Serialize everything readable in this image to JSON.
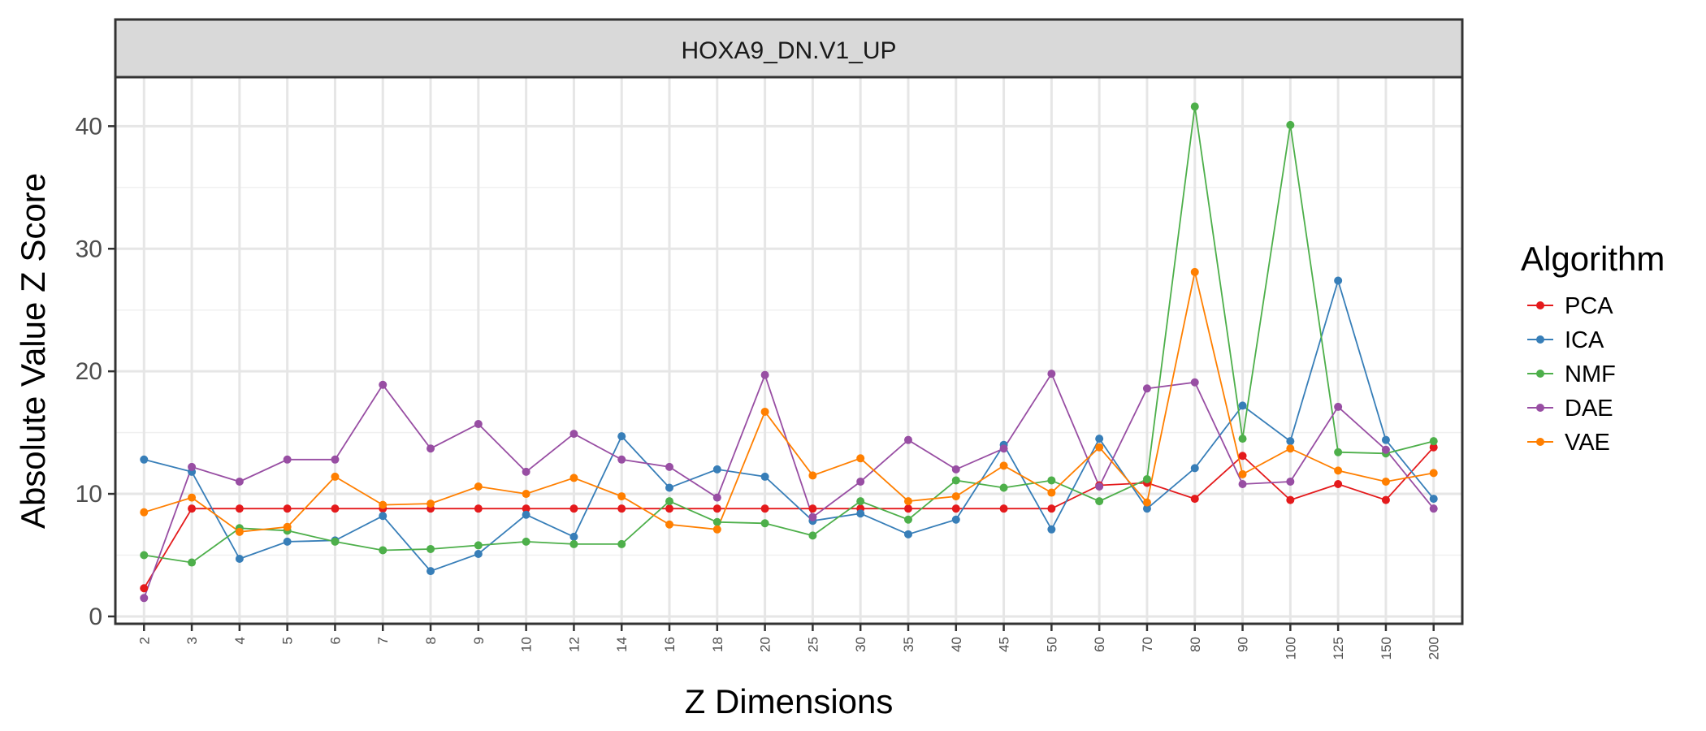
{
  "chart_data": {
    "type": "line",
    "panel_title": "HOXA9_DN.V1_UP",
    "xlabel": "Z Dimensions",
    "ylabel": "Absolute Value Z Score",
    "categories": [
      "2",
      "3",
      "4",
      "5",
      "6",
      "7",
      "8",
      "9",
      "10",
      "12",
      "14",
      "16",
      "18",
      "20",
      "25",
      "30",
      "35",
      "40",
      "45",
      "50",
      "60",
      "70",
      "80",
      "90",
      "100",
      "125",
      "150",
      "200"
    ],
    "yticks": [
      0,
      10,
      20,
      30,
      40
    ],
    "ylim": [
      -0.6,
      44
    ],
    "grid": true,
    "legend": {
      "title": "Algorithm",
      "position": "right"
    },
    "series": [
      {
        "name": "PCA",
        "color": "#E41A1C",
        "values": [
          2.3,
          8.8,
          8.8,
          8.8,
          8.8,
          8.8,
          8.8,
          8.8,
          8.8,
          8.8,
          8.8,
          8.8,
          8.8,
          8.8,
          8.8,
          8.8,
          8.8,
          8.8,
          8.8,
          8.8,
          10.7,
          10.9,
          9.6,
          13.1,
          9.5,
          10.8,
          9.5,
          13.8
        ]
      },
      {
        "name": "ICA",
        "color": "#377EB8",
        "values": [
          12.8,
          11.8,
          4.7,
          6.1,
          6.2,
          8.2,
          3.7,
          5.1,
          8.3,
          6.5,
          14.7,
          10.5,
          12.0,
          11.4,
          7.8,
          8.4,
          6.7,
          7.9,
          14.0,
          7.1,
          14.5,
          8.8,
          12.1,
          17.2,
          14.3,
          27.4,
          14.4,
          9.6
        ]
      },
      {
        "name": "NMF",
        "color": "#4DAF4A",
        "values": [
          5.0,
          4.4,
          7.2,
          7.0,
          6.1,
          5.4,
          5.5,
          5.8,
          6.1,
          5.9,
          5.9,
          9.4,
          7.7,
          7.6,
          6.6,
          9.4,
          7.9,
          11.1,
          10.5,
          11.1,
          9.4,
          11.2,
          41.6,
          14.5,
          40.1,
          13.4,
          13.3,
          14.3
        ]
      },
      {
        "name": "DAE",
        "color": "#984EA3",
        "values": [
          1.5,
          12.2,
          11.0,
          12.8,
          12.8,
          18.9,
          13.7,
          15.7,
          11.8,
          14.9,
          12.8,
          12.2,
          9.7,
          19.7,
          8.1,
          11.0,
          14.4,
          12.0,
          13.7,
          19.8,
          10.6,
          18.6,
          19.1,
          10.8,
          11.0,
          17.1,
          13.6,
          8.8
        ]
      },
      {
        "name": "VAE",
        "color": "#FF7F00",
        "values": [
          8.5,
          9.7,
          6.9,
          7.3,
          11.4,
          9.1,
          9.2,
          10.6,
          10.0,
          11.3,
          9.8,
          7.5,
          7.1,
          16.7,
          11.5,
          12.9,
          9.4,
          9.8,
          12.3,
          10.1,
          13.8,
          9.3,
          28.1,
          11.6,
          13.7,
          11.9,
          11.0,
          11.7
        ]
      }
    ]
  }
}
